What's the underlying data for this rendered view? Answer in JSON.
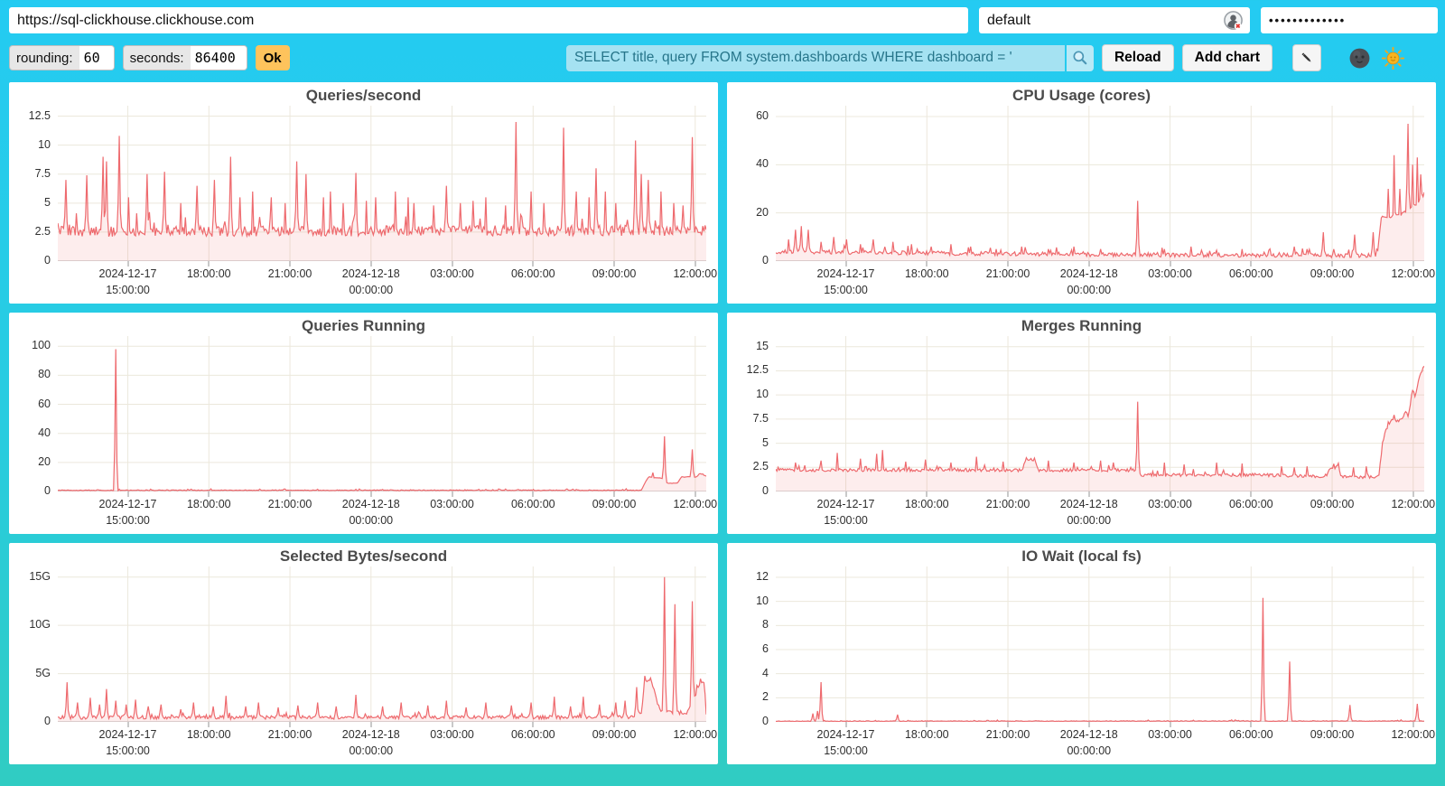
{
  "topbar": {
    "url": "https://sql-clickhouse.clickhouse.com",
    "user": "default",
    "password_masked": "•••••••••••••",
    "user_status_icon": "user-silhouette-with-red-x"
  },
  "toolbar": {
    "rounding_label": "rounding:",
    "rounding_value": "60",
    "seconds_label": "seconds:",
    "seconds_value": "86400",
    "ok_label": "Ok",
    "query": "SELECT title, query FROM system.dashboards WHERE dashboard = '",
    "search_icon": "magnifier",
    "reload_label": "Reload",
    "add_chart_label": "Add chart",
    "edit_icon": "pencil",
    "dark_theme_icon": "new-moon-face",
    "light_theme_icon": "sun-with-face"
  },
  "colors": {
    "background_top": "#24cbf2",
    "background_bottom": "#30ccc2",
    "accent_orange": "#fec35c",
    "query_bg": "#a5e2f2",
    "query_text": "#26758a",
    "series_line": "#ee6a6e",
    "series_fill": "rgba(238,106,110,0.12)",
    "grid": "#ece8dc",
    "title_text": "#4a4a4a"
  },
  "x_axis": {
    "first_tick_frac": 0.108,
    "tick_step_frac": 0.125,
    "ticks": [
      [
        "2024-12-17",
        "15:00:00"
      ],
      [
        "18:00:00",
        ""
      ],
      [
        "21:00:00",
        ""
      ],
      [
        "2024-12-18",
        "00:00:00"
      ],
      [
        "03:00:00",
        ""
      ],
      [
        "06:00:00",
        ""
      ],
      [
        "09:00:00",
        ""
      ],
      [
        "12:00:00",
        ""
      ]
    ]
  },
  "chart_data": [
    {
      "type": "line",
      "title": "Queries/second",
      "xlabel": "",
      "ylabel": "",
      "ylim": [
        0,
        13.4
      ],
      "yticks": [
        [
          0,
          "0"
        ],
        [
          2.5,
          "2.5"
        ],
        [
          5,
          "5"
        ],
        [
          7.5,
          "7.5"
        ],
        [
          10,
          "10"
        ],
        [
          12.5,
          "12.5"
        ]
      ],
      "series": {
        "noise": 0.9,
        "min": 0.3,
        "path": [
          [
            0,
            2.5
          ],
          [
            1,
            2.6
          ]
        ],
        "spikes": [
          [
            0.013,
            7.0
          ],
          [
            0.045,
            7.4
          ],
          [
            0.069,
            9.0
          ],
          [
            0.075,
            8.6
          ],
          [
            0.094,
            10.8
          ],
          [
            0.11,
            5.5
          ],
          [
            0.137,
            7.5
          ],
          [
            0.165,
            7.7
          ],
          [
            0.19,
            5.0
          ],
          [
            0.214,
            6.5
          ],
          [
            0.242,
            7.0
          ],
          [
            0.266,
            9.0
          ],
          [
            0.28,
            5.5
          ],
          [
            0.3,
            6.0
          ],
          [
            0.33,
            5.5
          ],
          [
            0.35,
            5.0
          ],
          [
            0.369,
            8.6
          ],
          [
            0.382,
            7.5
          ],
          [
            0.41,
            5.5
          ],
          [
            0.42,
            6.0
          ],
          [
            0.44,
            5.0
          ],
          [
            0.46,
            7.6
          ],
          [
            0.475,
            5.2
          ],
          [
            0.49,
            5.5
          ],
          [
            0.52,
            6.0
          ],
          [
            0.54,
            5.5
          ],
          [
            0.55,
            5.0
          ],
          [
            0.58,
            4.8
          ],
          [
            0.6,
            6.5
          ],
          [
            0.62,
            5.0
          ],
          [
            0.64,
            5.2
          ],
          [
            0.66,
            5.5
          ],
          [
            0.69,
            4.8
          ],
          [
            0.707,
            12.0
          ],
          [
            0.73,
            6.0
          ],
          [
            0.75,
            5.0
          ],
          [
            0.78,
            11.5
          ],
          [
            0.8,
            6.0
          ],
          [
            0.82,
            5.5
          ],
          [
            0.83,
            8.0
          ],
          [
            0.845,
            6.0
          ],
          [
            0.86,
            5.0
          ],
          [
            0.89,
            10.4
          ],
          [
            0.9,
            7.5
          ],
          [
            0.91,
            7.0
          ],
          [
            0.93,
            6.0
          ],
          [
            0.95,
            5.0
          ],
          [
            0.965,
            4.8
          ],
          [
            0.979,
            10.7
          ]
        ]
      }
    },
    {
      "type": "line",
      "title": "CPU Usage (cores)",
      "xlabel": "",
      "ylabel": "",
      "ylim": [
        0,
        64.5
      ],
      "yticks": [
        [
          0,
          "0"
        ],
        [
          20,
          "20"
        ],
        [
          40,
          "40"
        ],
        [
          60,
          "60"
        ]
      ],
      "series": {
        "noise": 1.7,
        "min": 0.4,
        "path": [
          [
            0,
            3.8
          ],
          [
            0.25,
            3.2
          ],
          [
            0.5,
            2.6
          ],
          [
            0.87,
            2.2
          ],
          [
            0.928,
            2.2
          ],
          [
            0.933,
            17
          ],
          [
            0.94,
            19
          ],
          [
            0.95,
            18
          ],
          [
            0.958,
            20
          ],
          [
            0.965,
            19
          ],
          [
            0.972,
            21
          ],
          [
            0.98,
            22
          ],
          [
            0.988,
            24
          ],
          [
            1,
            28
          ]
        ],
        "spikes": [
          [
            0.02,
            9
          ],
          [
            0.03,
            13
          ],
          [
            0.04,
            14.5
          ],
          [
            0.05,
            13
          ],
          [
            0.07,
            8
          ],
          [
            0.09,
            10
          ],
          [
            0.11,
            9
          ],
          [
            0.13,
            7
          ],
          [
            0.15,
            9
          ],
          [
            0.18,
            8
          ],
          [
            0.21,
            7
          ],
          [
            0.24,
            6
          ],
          [
            0.27,
            7
          ],
          [
            0.3,
            6
          ],
          [
            0.34,
            5
          ],
          [
            0.38,
            6
          ],
          [
            0.42,
            5
          ],
          [
            0.46,
            6
          ],
          [
            0.5,
            5
          ],
          [
            0.559,
            25
          ],
          [
            0.6,
            5
          ],
          [
            0.64,
            6
          ],
          [
            0.68,
            4.5
          ],
          [
            0.72,
            5
          ],
          [
            0.76,
            4.5
          ],
          [
            0.8,
            6
          ],
          [
            0.82,
            5
          ],
          [
            0.845,
            12
          ],
          [
            0.86,
            5
          ],
          [
            0.892,
            11
          ],
          [
            0.922,
            12
          ],
          [
            0.945,
            30
          ],
          [
            0.953,
            44
          ],
          [
            0.962,
            30
          ],
          [
            0.975,
            57
          ],
          [
            0.983,
            40
          ],
          [
            0.99,
            43
          ],
          [
            0.995,
            36
          ]
        ]
      }
    },
    {
      "type": "line",
      "title": "Queries Running",
      "xlabel": "",
      "ylabel": "",
      "ylim": [
        0,
        107
      ],
      "yticks": [
        [
          0,
          "0"
        ],
        [
          20,
          "20"
        ],
        [
          40,
          "40"
        ],
        [
          60,
          "60"
        ],
        [
          80,
          "80"
        ],
        [
          100,
          "100"
        ]
      ],
      "series": {
        "noise": 0.5,
        "min": 0.1,
        "path": [
          [
            0,
            0.8
          ],
          [
            0.9,
            0.8
          ],
          [
            0.908,
            8
          ],
          [
            0.912,
            10
          ],
          [
            0.932,
            9
          ],
          [
            0.94,
            5.5
          ],
          [
            0.956,
            6
          ],
          [
            0.962,
            10
          ],
          [
            0.985,
            10
          ],
          [
            0.99,
            12.5
          ],
          [
            1,
            10.5
          ]
        ],
        "spikes": [
          [
            0.09,
            98
          ],
          [
            0.2,
            1.5
          ],
          [
            0.35,
            1.6
          ],
          [
            0.5,
            1.4
          ],
          [
            0.65,
            1.5
          ],
          [
            0.8,
            1.4
          ],
          [
            0.918,
            13
          ],
          [
            0.936,
            38
          ],
          [
            0.979,
            29
          ]
        ]
      }
    },
    {
      "type": "line",
      "title": "Merges Running",
      "xlabel": "",
      "ylabel": "",
      "ylim": [
        0,
        16.1
      ],
      "yticks": [
        [
          0,
          "0"
        ],
        [
          2.5,
          "2.5"
        ],
        [
          5,
          "5"
        ],
        [
          7.5,
          "7.5"
        ],
        [
          10,
          "10"
        ],
        [
          12.5,
          "12.5"
        ],
        [
          15,
          "15"
        ]
      ],
      "series": {
        "noise": 0.32,
        "min": 1.0,
        "path": [
          [
            0,
            2.2
          ],
          [
            0.38,
            2.2
          ],
          [
            0.385,
            3.3
          ],
          [
            0.4,
            3.3
          ],
          [
            0.405,
            2.2
          ],
          [
            0.55,
            2.2
          ],
          [
            0.565,
            1.7
          ],
          [
            0.75,
            1.7
          ],
          [
            0.85,
            1.5
          ],
          [
            0.855,
            2.5
          ],
          [
            0.868,
            2.5
          ],
          [
            0.872,
            1.5
          ],
          [
            0.93,
            1.5
          ],
          [
            0.936,
            5.2
          ],
          [
            0.942,
            6.5
          ],
          [
            0.95,
            7.6
          ],
          [
            0.958,
            7.2
          ],
          [
            0.965,
            7.5
          ],
          [
            0.972,
            8.2
          ],
          [
            0.976,
            7.8
          ],
          [
            0.98,
            9.8
          ],
          [
            0.984,
            10.3
          ],
          [
            0.987,
            9.6
          ],
          [
            0.99,
            11.3
          ],
          [
            0.994,
            12.2
          ],
          [
            1,
            12.9
          ]
        ],
        "spikes": [
          [
            0.03,
            3.0
          ],
          [
            0.07,
            3.2
          ],
          [
            0.095,
            4.0
          ],
          [
            0.13,
            3.4
          ],
          [
            0.155,
            3.9
          ],
          [
            0.165,
            4.3
          ],
          [
            0.2,
            3.1
          ],
          [
            0.23,
            3.3
          ],
          [
            0.27,
            3.0
          ],
          [
            0.31,
            3.6
          ],
          [
            0.35,
            3.1
          ],
          [
            0.42,
            3.2
          ],
          [
            0.46,
            3.0
          ],
          [
            0.5,
            3.2
          ],
          [
            0.52,
            3.0
          ],
          [
            0.559,
            9.3
          ],
          [
            0.6,
            3.0
          ],
          [
            0.63,
            2.8
          ],
          [
            0.68,
            3.0
          ],
          [
            0.72,
            2.9
          ],
          [
            0.78,
            2.6
          ],
          [
            0.8,
            2.5
          ],
          [
            0.82,
            2.6
          ],
          [
            0.89,
            2.5
          ],
          [
            0.91,
            2.6
          ]
        ]
      }
    },
    {
      "type": "line",
      "title": "Selected Bytes/second",
      "xlabel": "",
      "ylabel": "",
      "ylim": [
        0,
        16.1
      ],
      "y_unit": "G",
      "yticks": [
        [
          0,
          "0"
        ],
        [
          5,
          "5G"
        ],
        [
          10,
          "10G"
        ],
        [
          15,
          "15G"
        ]
      ],
      "series": {
        "noise": 0.38,
        "min": 0.05,
        "path": [
          [
            0,
            0.45
          ],
          [
            0.88,
            0.45
          ],
          [
            0.9,
            0.9
          ],
          [
            0.905,
            4.3
          ],
          [
            0.915,
            4.4
          ],
          [
            0.925,
            1.8
          ],
          [
            0.93,
            1.2
          ],
          [
            0.94,
            1.0
          ],
          [
            0.97,
            0.9
          ],
          [
            0.99,
            3.8
          ],
          [
            0.997,
            4.0
          ],
          [
            1,
            0.8
          ]
        ],
        "spikes": [
          [
            0.015,
            4.1
          ],
          [
            0.03,
            2.0
          ],
          [
            0.05,
            2.5
          ],
          [
            0.065,
            1.8
          ],
          [
            0.075,
            3.4
          ],
          [
            0.09,
            2.2
          ],
          [
            0.105,
            1.8
          ],
          [
            0.12,
            2.3
          ],
          [
            0.14,
            1.6
          ],
          [
            0.16,
            1.8
          ],
          [
            0.19,
            1.3
          ],
          [
            0.21,
            2.0
          ],
          [
            0.24,
            1.6
          ],
          [
            0.26,
            2.7
          ],
          [
            0.29,
            1.6
          ],
          [
            0.31,
            2.0
          ],
          [
            0.34,
            1.5
          ],
          [
            0.37,
            1.7
          ],
          [
            0.4,
            2.0
          ],
          [
            0.43,
            1.6
          ],
          [
            0.46,
            2.8
          ],
          [
            0.5,
            1.6
          ],
          [
            0.53,
            2.0
          ],
          [
            0.57,
            1.7
          ],
          [
            0.6,
            2.2
          ],
          [
            0.63,
            1.5
          ],
          [
            0.66,
            2.0
          ],
          [
            0.7,
            1.7
          ],
          [
            0.73,
            2.0
          ],
          [
            0.765,
            2.6
          ],
          [
            0.79,
            1.6
          ],
          [
            0.81,
            2.6
          ],
          [
            0.835,
            1.8
          ],
          [
            0.86,
            2.0
          ],
          [
            0.875,
            2.2
          ],
          [
            0.893,
            3.6
          ],
          [
            0.935,
            15.0
          ],
          [
            0.952,
            12.2
          ],
          [
            0.979,
            12.5
          ]
        ]
      }
    },
    {
      "type": "line",
      "title": "IO Wait (local fs)",
      "xlabel": "",
      "ylabel": "",
      "ylim": [
        0,
        12.9
      ],
      "yticks": [
        [
          0,
          "0"
        ],
        [
          2,
          "2"
        ],
        [
          4,
          "4"
        ],
        [
          6,
          "6"
        ],
        [
          8,
          "8"
        ],
        [
          10,
          "10"
        ],
        [
          12,
          "12"
        ]
      ],
      "series": {
        "noise": 0.05,
        "min": 0.01,
        "path": [
          [
            0,
            0.05
          ],
          [
            1,
            0.07
          ]
        ],
        "spikes": [
          [
            0.057,
            0.7
          ],
          [
            0.064,
            0.9
          ],
          [
            0.07,
            3.3
          ],
          [
            0.1,
            0.1
          ],
          [
            0.187,
            0.6
          ],
          [
            0.23,
            0.08
          ],
          [
            0.37,
            0.1
          ],
          [
            0.45,
            0.06
          ],
          [
            0.55,
            0.09
          ],
          [
            0.65,
            0.06
          ],
          [
            0.72,
            0.08
          ],
          [
            0.752,
            10.3
          ],
          [
            0.793,
            5.0
          ],
          [
            0.885,
            1.4
          ],
          [
            0.95,
            0.1
          ],
          [
            0.99,
            1.5
          ]
        ]
      }
    }
  ]
}
